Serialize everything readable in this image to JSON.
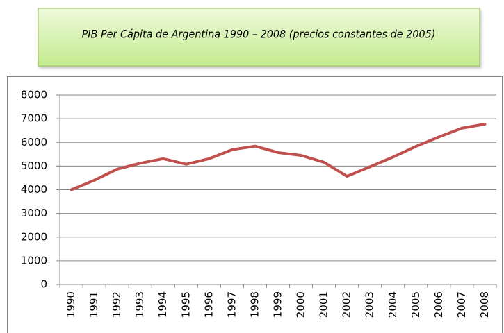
{
  "chart_data": {
    "type": "line",
    "title": "PIB Per Cápita de Argentina 1990 – 2008 (precios constantes de 2005)",
    "categories": [
      "1990",
      "1991",
      "1992",
      "1993",
      "1994",
      "1995",
      "1996",
      "1997",
      "1998",
      "1999",
      "2000",
      "2001",
      "2002",
      "2003",
      "2004",
      "2005",
      "2006",
      "2007",
      "2008"
    ],
    "series": [
      {
        "name": "PIB per cápita",
        "color": "#c0504d",
        "values": [
          4000,
          4400,
          4870,
          5120,
          5310,
          5080,
          5310,
          5690,
          5840,
          5570,
          5450,
          5160,
          4570,
          4970,
          5380,
          5830,
          6230,
          6600,
          6770
        ]
      }
    ],
    "ylim": [
      0,
      8000
    ],
    "yticks": [
      0,
      1000,
      2000,
      3000,
      4000,
      5000,
      6000,
      7000,
      8000
    ],
    "grid": true
  }
}
